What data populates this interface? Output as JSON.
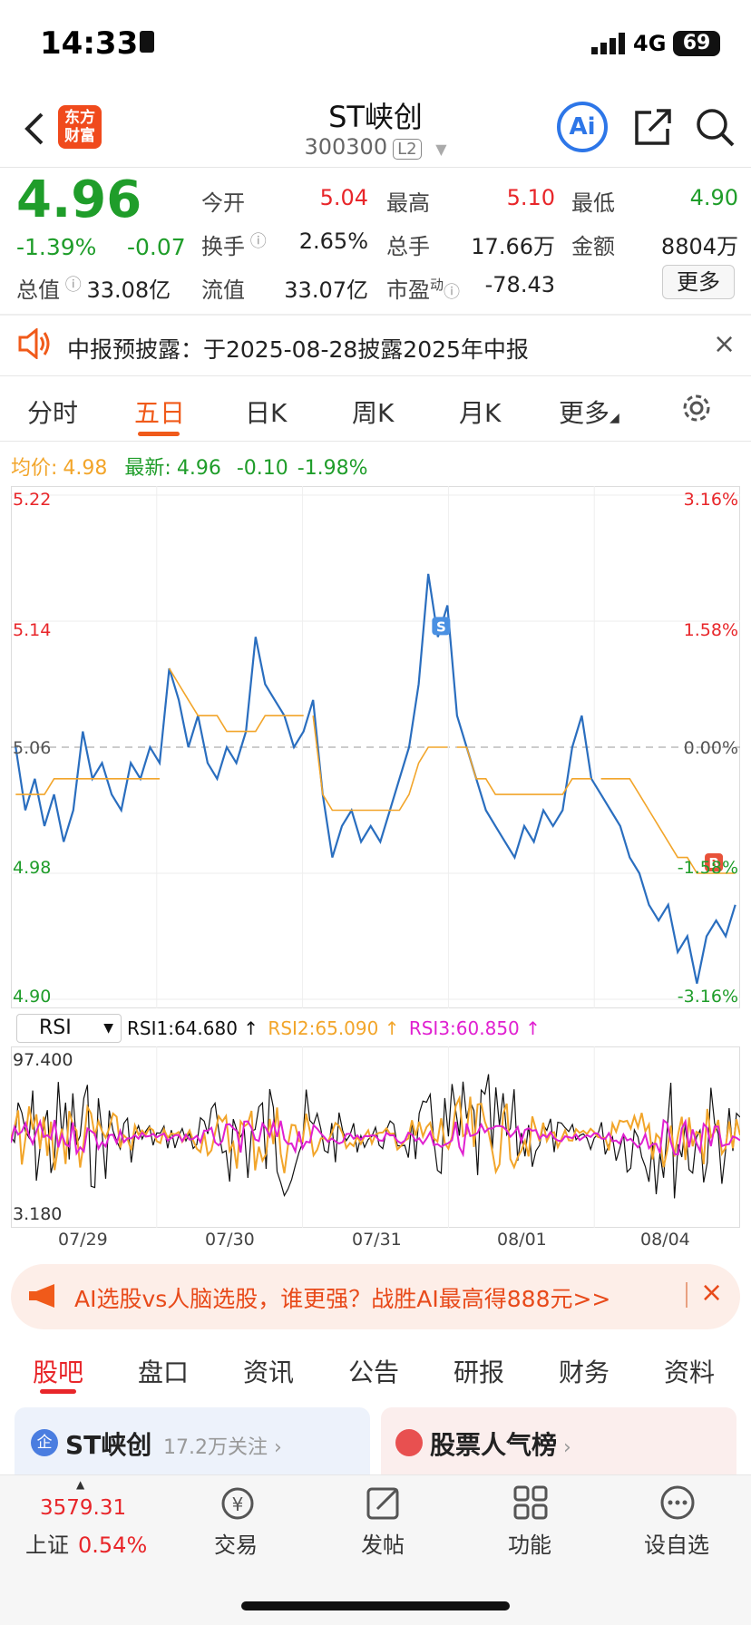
{
  "status_bar": {
    "time": "14:33",
    "network": "4G",
    "battery": "69"
  },
  "header": {
    "title": "ST峡创",
    "code": "300300",
    "level_badge": "L2",
    "logo_line1": "东方",
    "logo_line2": "财富",
    "ai_label": "Ai"
  },
  "quote": {
    "price": "4.96",
    "change_pct": "-1.39%",
    "change": "-0.07",
    "open_label": "今开",
    "open": "5.04",
    "high_label": "最高",
    "high": "5.10",
    "low_label": "最低",
    "low": "4.90",
    "turnover_label": "换手",
    "turnover": "2.65%",
    "volume_label": "总手",
    "volume": "17.66万",
    "amount_label": "金额",
    "amount": "8804万",
    "mcap_label": "总值",
    "mcap": "33.08亿",
    "float_label": "流值",
    "float": "33.07亿",
    "pe_label": "市盈",
    "pe_sup": "动",
    "pe": "-78.43",
    "more": "更多"
  },
  "notice": {
    "text": "中报预披露：于2025-08-28披露2025年中报"
  },
  "chart_tabs": [
    "分时",
    "五日",
    "日K",
    "周K",
    "月K",
    "更多"
  ],
  "info": {
    "avg_label": "均价:",
    "avg": "4.98",
    "latest_label": "最新:",
    "latest": "4.96",
    "latest_change": "-0.10",
    "latest_pct": "-1.98%"
  },
  "chart_data": {
    "type": "line",
    "y_ticks_left": [
      "5.22",
      "5.14",
      "5.06",
      "4.98",
      "4.90"
    ],
    "y_ticks_right": [
      "3.16%",
      "1.58%",
      "0.00%",
      "-1.58%",
      "-3.16%"
    ],
    "ylim": [
      4.9,
      5.22
    ],
    "prev_close": 5.06,
    "days": [
      "07/29",
      "07/30",
      "07/31",
      "08/01",
      "08/04"
    ],
    "markers": [
      {
        "label": "S",
        "day": "07/31",
        "price": 5.13
      },
      {
        "label": "B",
        "day": "08/04",
        "price": 4.98
      }
    ],
    "series": [
      {
        "name": "price",
        "color": "#2a6ebf",
        "values": [
          5.06,
          5.02,
          5.04,
          5.01,
          5.03,
          5.0,
          5.02,
          5.07,
          5.04,
          5.05,
          5.03,
          5.02,
          5.05,
          5.04,
          5.06,
          5.05,
          5.11,
          5.09,
          5.06,
          5.08,
          5.05,
          5.04,
          5.06,
          5.05,
          5.07,
          5.13,
          5.1,
          5.09,
          5.08,
          5.06,
          5.07,
          5.09,
          5.03,
          4.99,
          5.01,
          5.02,
          5.0,
          5.01,
          5.0,
          5.02,
          5.04,
          5.06,
          5.1,
          5.17,
          5.13,
          5.15,
          5.08,
          5.06,
          5.04,
          5.02,
          5.01,
          5.0,
          4.99,
          5.01,
          5.0,
          5.02,
          5.01,
          5.02,
          5.06,
          5.08,
          5.04,
          5.03,
          5.02,
          5.01,
          4.99,
          4.98,
          4.96,
          4.95,
          4.96,
          4.93,
          4.94,
          4.91,
          4.94,
          4.95,
          4.94,
          4.96
        ]
      },
      {
        "name": "avg",
        "color": "#f2a52a",
        "values": [
          5.03,
          5.03,
          5.03,
          5.03,
          5.04,
          5.04,
          5.04,
          5.04,
          5.04,
          5.04,
          5.04,
          5.04,
          5.04,
          5.04,
          5.04,
          5.04,
          5.11,
          5.1,
          5.09,
          5.08,
          5.08,
          5.08,
          5.07,
          5.07,
          5.07,
          5.07,
          5.08,
          5.08,
          5.08,
          5.08,
          5.08,
          5.08,
          5.03,
          5.02,
          5.02,
          5.02,
          5.02,
          5.02,
          5.02,
          5.02,
          5.02,
          5.03,
          5.05,
          5.06,
          5.06,
          5.06,
          5.06,
          5.06,
          5.04,
          5.04,
          5.03,
          5.03,
          5.03,
          5.03,
          5.03,
          5.03,
          5.03,
          5.03,
          5.04,
          5.04,
          5.04,
          5.04,
          5.04,
          5.04,
          5.04,
          5.03,
          5.02,
          5.01,
          5.0,
          4.99,
          4.99,
          4.98,
          4.98,
          4.98,
          4.98,
          4.98
        ]
      }
    ]
  },
  "rsi": {
    "selector": "RSI",
    "rsi1": "RSI1:64.680 ↑",
    "rsi2": "RSI2:65.090 ↑",
    "rsi3": "RSI3:60.850 ↑",
    "max": "97.400",
    "min": "3.180"
  },
  "banner": {
    "text": "AI选股vs人脑选股，谁更强？战胜AI最高得888元>>"
  },
  "bottom_tabs": [
    "股吧",
    "盘口",
    "资讯",
    "公告",
    "研报",
    "财务",
    "资料"
  ],
  "cards": {
    "left_title": "ST峡创",
    "left_follow": "17.2万关注",
    "left_badge": "企",
    "right_title": "股票人气榜"
  },
  "bottom_nav": {
    "index_value": "3579.31",
    "index_name": "上证",
    "index_pct": "0.54%",
    "items": [
      "交易",
      "发帖",
      "功能",
      "设自选"
    ]
  }
}
